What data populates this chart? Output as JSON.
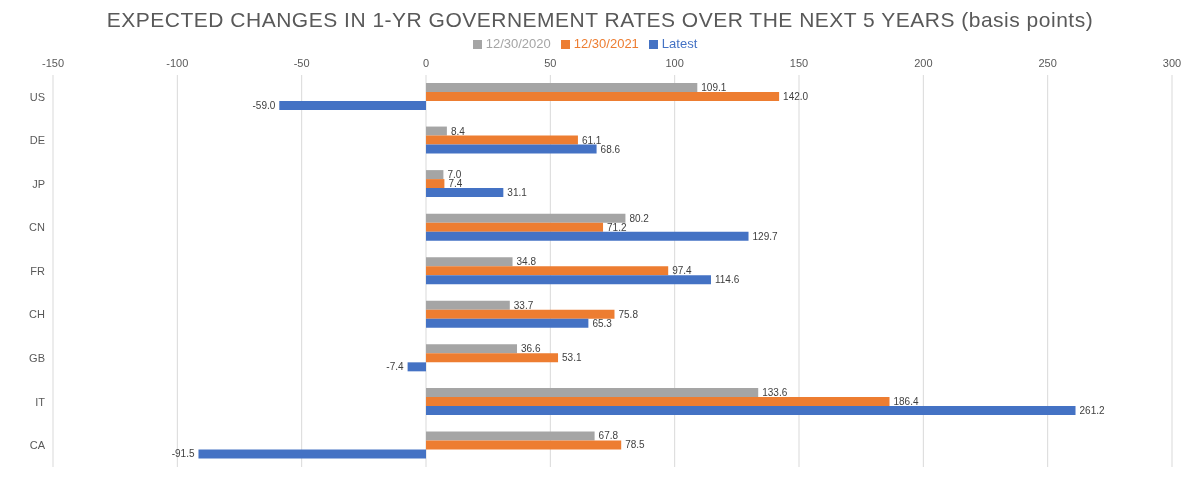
{
  "chart_data": {
    "type": "bar",
    "orientation": "horizontal",
    "title": "EXPECTED CHANGES IN 1-YR GOVERNEMENT RATES OVER THE NEXT 5 YEARS (basis points)",
    "categories": [
      "US",
      "DE",
      "JP",
      "CN",
      "FR",
      "CH",
      "GB",
      "IT",
      "CA"
    ],
    "series": [
      {
        "name": "12/30/2020",
        "color": "#a5a5a5",
        "values": [
          109.1,
          8.4,
          7.0,
          80.2,
          34.8,
          33.7,
          36.6,
          133.6,
          67.8
        ],
        "value_labels": [
          "109.1",
          "8.4",
          "7.0",
          "80.2",
          "34.8",
          "33.7",
          "36.6",
          "133.6",
          "67.8"
        ]
      },
      {
        "name": "12/30/2021",
        "color": "#ed7d31",
        "values": [
          142.0,
          61.1,
          7.4,
          71.2,
          97.4,
          75.8,
          53.1,
          186.4,
          78.5
        ],
        "value_labels": [
          "142.0",
          "61.1",
          "7.4",
          "71.2",
          "97.4",
          "75.8",
          "53.1",
          "186.4",
          "78.5"
        ]
      },
      {
        "name": "Latest",
        "color": "#4472c4",
        "values": [
          -59.0,
          68.6,
          31.1,
          129.7,
          114.6,
          65.3,
          -7.4,
          261.2,
          -91.5
        ],
        "value_labels": [
          "-59.0",
          "68.6",
          "31.1",
          "129.7",
          "114.6",
          "65.3",
          "-7.4",
          "261.2",
          "-91.5"
        ]
      }
    ],
    "xlim": [
      -150,
      300
    ],
    "xticks": [
      -150,
      -100,
      -50,
      0,
      50,
      100,
      150,
      200,
      250,
      300
    ],
    "grid": "x",
    "legend": "top"
  }
}
